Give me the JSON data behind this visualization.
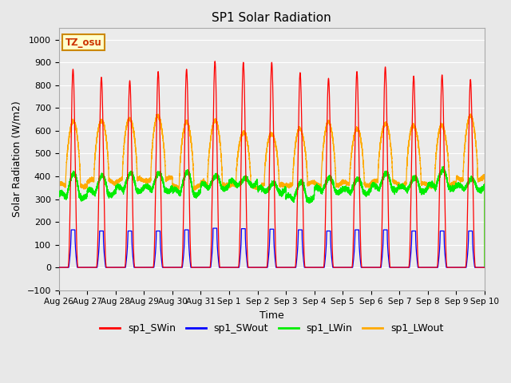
{
  "title": "SP1 Solar Radiation",
  "xlabel": "Time",
  "ylabel": "Solar Radiation (W/m2)",
  "ylim": [
    -100,
    1050
  ],
  "xlim": [
    0,
    15
  ],
  "tick_labels": [
    "Aug 26",
    "Aug 27",
    "Aug 28",
    "Aug 29",
    "Aug 30",
    "Aug 31",
    "Sep 1",
    "Sep 2",
    "Sep 3",
    "Sep 4",
    "Sep 5",
    "Sep 6",
    "Sep 7",
    "Sep 8",
    "Sep 9",
    "Sep 10"
  ],
  "colors": {
    "sp1_SWin": "#ff0000",
    "sp1_SWout": "#0000ff",
    "sp1_LWin": "#00ee00",
    "sp1_LWout": "#ffaa00"
  },
  "tz_label": "TZ_osu",
  "background_color": "#e8e8e8",
  "plot_background": "#ebebeb",
  "swin_peaks": [
    870,
    835,
    820,
    860,
    870,
    905,
    900,
    900,
    855,
    830,
    860,
    880,
    840,
    845,
    825
  ],
  "swout_peaks": [
    165,
    160,
    160,
    160,
    165,
    172,
    170,
    168,
    165,
    160,
    165,
    165,
    160,
    160,
    160
  ],
  "lwin_day_peaks": [
    405,
    395,
    405,
    405,
    410,
    395,
    380,
    360,
    365,
    385,
    380,
    405,
    385,
    420,
    380
  ],
  "lwin_night": [
    315,
    330,
    345,
    345,
    330,
    355,
    370,
    340,
    305,
    340,
    335,
    350,
    345,
    355,
    350
  ],
  "lwout_day_peaks": [
    638,
    648,
    658,
    663,
    632,
    643,
    598,
    592,
    607,
    632,
    607,
    637,
    627,
    622,
    658
  ],
  "lwout_night": [
    362,
    377,
    382,
    387,
    357,
    367,
    357,
    357,
    367,
    367,
    367,
    372,
    362,
    362,
    392
  ]
}
